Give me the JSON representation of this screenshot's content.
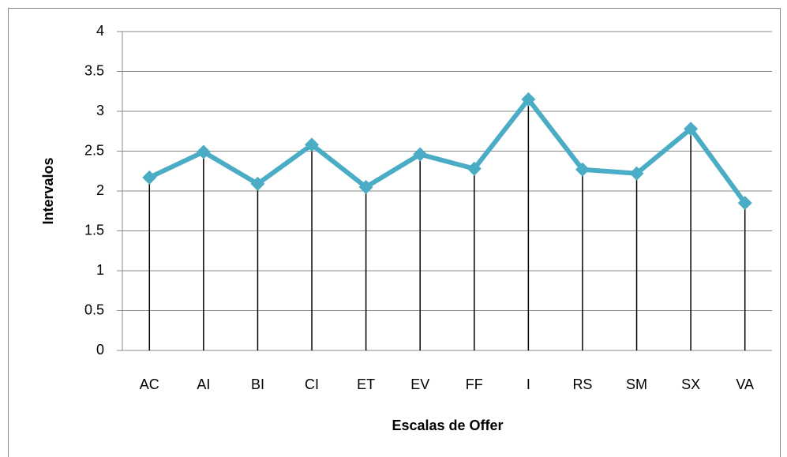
{
  "chart_data": {
    "type": "line",
    "x_label": "Escalas de Offer",
    "y_label": "Intervalos",
    "categories": [
      "AC",
      "AI",
      "BI",
      "CI",
      "ET",
      "EV",
      "FF",
      "I",
      "RS",
      "SM",
      "SX",
      "VA"
    ],
    "series": [
      {
        "name": "Intervalos",
        "color": "#4bacc6",
        "values": [
          2.17,
          2.49,
          2.09,
          2.58,
          2.05,
          2.46,
          2.28,
          3.15,
          2.27,
          2.22,
          2.78,
          1.85
        ]
      }
    ],
    "ylim": [
      0,
      4
    ],
    "yticks": [
      0,
      0.5,
      1,
      1.5,
      2,
      2.5,
      3,
      3.5,
      4
    ],
    "grid": true,
    "drop_lines": true,
    "legend": false
  }
}
